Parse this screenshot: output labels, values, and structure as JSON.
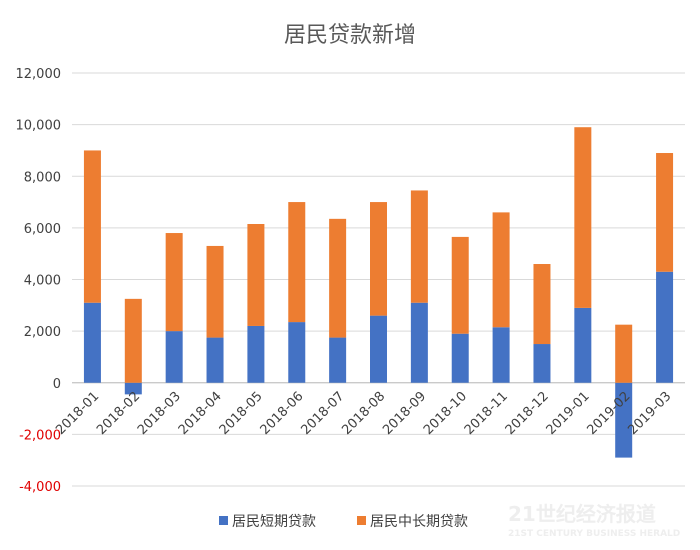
{
  "chart_data": {
    "type": "bar",
    "stacked": true,
    "title": "居民贷款新增",
    "categories": [
      "2018-01",
      "2018-02",
      "2018-03",
      "2018-04",
      "2018-05",
      "2018-06",
      "2018-07",
      "2018-08",
      "2018-09",
      "2018-10",
      "2018-11",
      "2018-12",
      "2019-01",
      "2019-02",
      "2019-03"
    ],
    "series": [
      {
        "name": "居民短期贷款",
        "color": "#4472c4",
        "values": [
          3100,
          -450,
          2000,
          1750,
          2200,
          2350,
          1750,
          2600,
          3100,
          1900,
          2150,
          1500,
          2900,
          -2900,
          4300
        ]
      },
      {
        "name": "居民中长期贷款",
        "color": "#ed7d31",
        "values": [
          5900,
          3250,
          3800,
          3550,
          3950,
          4650,
          4600,
          4400,
          4350,
          3750,
          4450,
          3100,
          7000,
          2250,
          4600
        ]
      }
    ],
    "y_ticks": [
      "12,000",
      "10,000",
      "8,000",
      "6,000",
      "4,000",
      "2,000",
      "0",
      "-2,000",
      "-4,000"
    ],
    "ylim": [
      -4000,
      12000
    ],
    "grid": true,
    "legend_position": "bottom",
    "negative_tick_color": "#e00000"
  },
  "watermark": {
    "line1": "21世纪经济报道",
    "line2": "21ST CENTURY BUSINESS HERALD"
  }
}
